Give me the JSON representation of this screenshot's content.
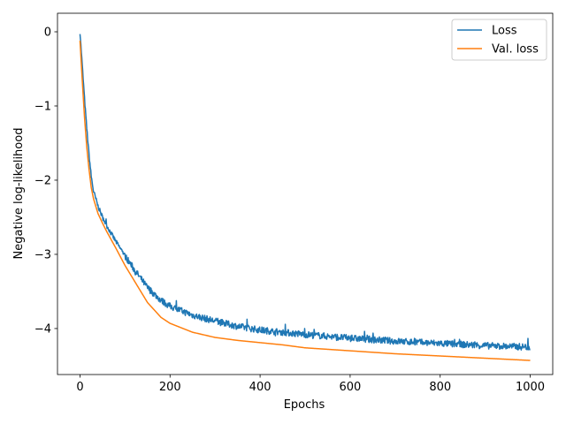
{
  "chart_data": {
    "type": "line",
    "xlabel": "Epochs",
    "ylabel": "Negative log-likelihood",
    "xlim": [
      -50,
      1050
    ],
    "ylim": [
      -4.62,
      0.25
    ],
    "xticks": [
      0,
      200,
      400,
      600,
      800,
      1000
    ],
    "yticks": [
      0,
      -1,
      -2,
      -3,
      -4
    ],
    "xtick_labels": [
      "0",
      "200",
      "400",
      "600",
      "800",
      "1000"
    ],
    "ytick_labels": [
      "0",
      "−1",
      "−2",
      "−3",
      "−4"
    ],
    "legend_position": "top-right",
    "grid": false,
    "series": [
      {
        "name": "Loss",
        "color": "#1f77b4",
        "noisy": true,
        "x": [
          0,
          5,
          10,
          15,
          20,
          25,
          30,
          40,
          50,
          60,
          80,
          100,
          120,
          150,
          180,
          200,
          250,
          300,
          350,
          400,
          450,
          500,
          600,
          700,
          800,
          900,
          1000
        ],
        "y": [
          0.0,
          -0.45,
          -0.9,
          -1.3,
          -1.65,
          -1.95,
          -2.15,
          -2.35,
          -2.5,
          -2.62,
          -2.83,
          -3.02,
          -3.2,
          -3.45,
          -3.62,
          -3.7,
          -3.82,
          -3.9,
          -3.97,
          -4.02,
          -4.05,
          -4.08,
          -4.13,
          -4.17,
          -4.2,
          -4.23,
          -4.25
        ]
      },
      {
        "name": "Val. loss",
        "color": "#ff7f0e",
        "noisy": false,
        "x": [
          0,
          5,
          10,
          15,
          20,
          25,
          30,
          40,
          50,
          60,
          80,
          100,
          120,
          150,
          180,
          200,
          250,
          300,
          350,
          400,
          450,
          500,
          600,
          700,
          800,
          900,
          1000
        ],
        "y": [
          -0.12,
          -0.65,
          -1.15,
          -1.55,
          -1.85,
          -2.1,
          -2.25,
          -2.45,
          -2.58,
          -2.7,
          -2.92,
          -3.15,
          -3.35,
          -3.65,
          -3.85,
          -3.93,
          -4.05,
          -4.12,
          -4.16,
          -4.19,
          -4.22,
          -4.26,
          -4.3,
          -4.34,
          -4.37,
          -4.4,
          -4.43
        ]
      }
    ]
  }
}
